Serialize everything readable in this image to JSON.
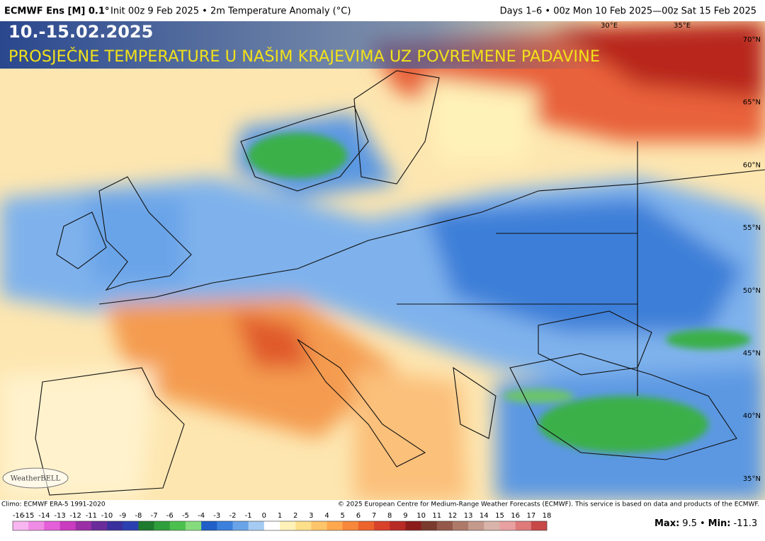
{
  "header": {
    "model": "ECMWF Ens [M] 0.1°",
    "left": "Init 00z 9 Feb 2025 • 2m Temperature Anomaly (°C)",
    "right": "Days 1–6 • 00z Mon 10 Feb 2025—00z Sat 15 Feb 2025"
  },
  "overlay": {
    "date": "10.-15.02.2025",
    "headline": "PROSJEČNE TEMPERATURE U NAŠIM KRAJEVIMA UZ POVREMENE PADAVINE"
  },
  "map": {
    "lon_labels": [
      "30°E",
      "35°E"
    ],
    "lat_labels": [
      "70°N",
      "65°N",
      "60°N",
      "55°N",
      "50°N",
      "45°N",
      "40°N",
      "35°N"
    ],
    "logo": "WeatherBELL"
  },
  "footer": {
    "climo": "Climo: ECMWF ERA-5 1991-2020",
    "copyright": "© 2025 European Centre for Medium-Range Weather Forecasts (ECMWF). This service is based on data and products of the ECMWF.",
    "max_label": "Max:",
    "max": 9.5,
    "separator": "•",
    "min_label": "Min:",
    "min": -11.3
  },
  "colorbar": {
    "ticks": [
      -16,
      -15,
      -14,
      -13,
      -12,
      -11,
      -10,
      -9,
      -8,
      -7,
      -6,
      -5,
      -4,
      -3,
      -2,
      -1,
      0,
      1,
      2,
      3,
      4,
      5,
      6,
      7,
      8,
      9,
      10,
      11,
      12,
      13,
      14,
      15,
      16,
      17,
      18
    ],
    "colors": [
      "#f7b6f0",
      "#f08ce6",
      "#e45fd8",
      "#c93cc0",
      "#9b2fa6",
      "#6a2c9a",
      "#3a2f9c",
      "#2a40b0",
      "#1e7a2e",
      "#2f9e3c",
      "#4cc04e",
      "#86dc7c",
      "#1f5fc7",
      "#3b80dc",
      "#6aa4e8",
      "#a6cbf2",
      "#ffffff",
      "#fff2b8",
      "#ffe08a",
      "#ffc56a",
      "#ffa84e",
      "#f7873a",
      "#ec632c",
      "#d8412a",
      "#b82a26",
      "#8c1c1c",
      "#7a3a2e",
      "#94594a",
      "#ad7a6a",
      "#c49a8c",
      "#d8b4aa",
      "#e8a0a0",
      "#de7a7a",
      "#c84848"
    ]
  }
}
